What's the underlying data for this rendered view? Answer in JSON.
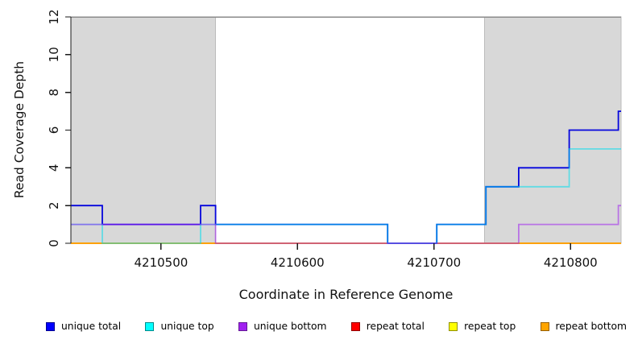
{
  "chart_data": {
    "type": "line",
    "subtype": "step-coverage",
    "title": "",
    "xlabel": "Coordinate in Reference Genome",
    "ylabel": "Read Coverage Depth",
    "xlim": [
      4210434,
      4210837
    ],
    "ylim": [
      0,
      12
    ],
    "x_ticks": [
      4210500,
      4210600,
      4210700,
      4210800
    ],
    "y_ticks": [
      0,
      2,
      4,
      6,
      8,
      10,
      12
    ],
    "grid": false,
    "top_border_color": "#8a8a8a",
    "axis_color": "#1a1a1a",
    "background_regions": [
      {
        "name": "repeat-region-left",
        "start": 4210434,
        "end": 4210540,
        "fill": "#d8d8d8",
        "stroke": "#bcbcbc"
      },
      {
        "name": "repeat-region-right",
        "start": 4210737,
        "end": 4210837,
        "fill": "#d8d8d8",
        "stroke": "#bcbcbc"
      }
    ],
    "series": [
      {
        "name": "repeat total",
        "color": "#dc0000",
        "alpha": 1,
        "points": [
          [
            4210434,
            0
          ]
        ]
      },
      {
        "name": "repeat top",
        "color": "#f0f000",
        "alpha": 1,
        "points": [
          [
            4210434,
            0
          ]
        ]
      },
      {
        "name": "repeat bottom",
        "color": "#ff9c00",
        "alpha": 1,
        "points": [
          [
            4210434,
            0
          ]
        ]
      },
      {
        "name": "unique total",
        "color": "#0505dd",
        "alpha": 1,
        "points": [
          [
            4210434,
            2
          ],
          [
            4210457,
            1
          ],
          [
            4210529,
            2
          ],
          [
            4210540,
            1
          ],
          [
            4210666,
            0
          ],
          [
            4210702,
            1
          ],
          [
            4210738,
            3
          ],
          [
            4210762,
            4
          ],
          [
            4210799,
            6
          ],
          [
            4210835,
            7
          ]
        ]
      },
      {
        "name": "unique top",
        "color": "#00dfee",
        "alpha": 0.55,
        "points": [
          [
            4210434,
            1
          ],
          [
            4210457,
            0
          ],
          [
            4210529,
            1
          ],
          [
            4210666,
            0
          ],
          [
            4210702,
            1
          ],
          [
            4210738,
            3
          ],
          [
            4210799,
            5
          ]
        ]
      },
      {
        "name": "unique bottom",
        "color": "#a020f0",
        "alpha": 0.55,
        "points": [
          [
            4210434,
            1
          ],
          [
            4210540,
            0
          ],
          [
            4210762,
            1
          ],
          [
            4210835,
            2
          ]
        ]
      }
    ]
  },
  "legend": {
    "items": [
      {
        "label": "unique total",
        "fill": "#0000ff",
        "border": "#000090"
      },
      {
        "label": "unique top",
        "fill": "#00ffff",
        "border": "#008b8b"
      },
      {
        "label": "unique bottom",
        "fill": "#a020f0",
        "border": "#651a96"
      },
      {
        "label": "repeat total",
        "fill": "#ff0000",
        "border": "#900000"
      },
      {
        "label": "repeat top",
        "fill": "#ffff00",
        "border": "#909000"
      },
      {
        "label": "repeat bottom",
        "fill": "#ffa500",
        "border": "#965f00"
      }
    ]
  }
}
